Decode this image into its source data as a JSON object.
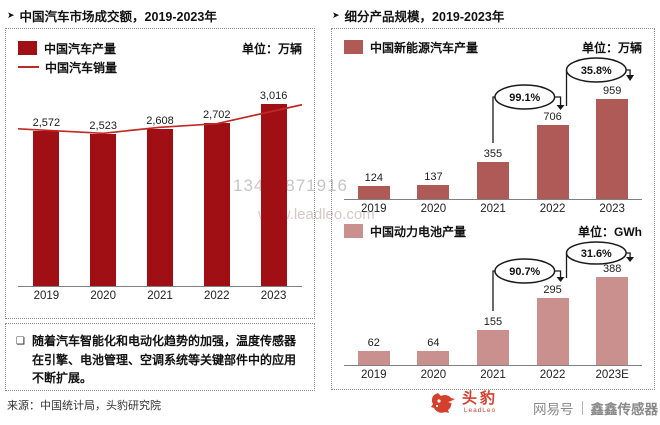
{
  "page": {
    "right": {
      "title": "细分产品规模，2019-2023年"
    },
    "left": {
      "note": "随着汽车智能化和电动化趋势的加强，温度传感器在引擎、电池管理、空调系统等关键部件中的应用不断扩展。",
      "source": "来源：中国统计局，头豹研究院"
    },
    "watermarks": {
      "phone": "13468871916",
      "site": "www.leadleo.com"
    },
    "footer": {
      "brand": "头豹",
      "brand_sub": "LeadLeo",
      "platform": "网易号",
      "account": "鑫鑫传感器"
    }
  },
  "chart_data": [
    {
      "id": "auto-market",
      "type": "bar",
      "title": "中国汽车市场成交额，2019-2023年",
      "unit_label": "单位：万辆",
      "unit": "万辆",
      "categories": [
        "2019",
        "2020",
        "2021",
        "2022",
        "2023"
      ],
      "series": [
        {
          "name": "中国汽车产量",
          "type": "bar",
          "values": [
            2572,
            2523,
            2608,
            2702,
            3016
          ],
          "labels": [
            "2,572",
            "2,523",
            "2,608",
            "2,702",
            "3,016"
          ],
          "color": "#a00f14"
        },
        {
          "name": "中国汽车销量",
          "type": "line",
          "values_estimated": [
            2580,
            2530,
            2630,
            2690,
            2900
          ],
          "color": "#be2b26",
          "note": "line is unlabeled in the figure; values estimated from pixels"
        }
      ],
      "ylim": [
        0,
        3016
      ],
      "grid": false,
      "legend_position": "top-left"
    },
    {
      "id": "nev",
      "type": "bar",
      "title": "中国新能源汽车产量",
      "unit_label": "单位：万辆",
      "unit": "万辆",
      "categories": [
        "2019",
        "2020",
        "2021",
        "2022",
        "2023"
      ],
      "values": [
        124,
        137,
        355,
        706,
        959
      ],
      "labels": [
        "124",
        "137",
        "355",
        "706",
        "959"
      ],
      "color": "#b05a58",
      "growth_annotations": [
        {
          "from": "2021",
          "to": "2022",
          "label": "99.1%"
        },
        {
          "from": "2022",
          "to": "2023",
          "label": "35.8%"
        }
      ],
      "ylim": [
        0,
        959
      ],
      "grid": false
    },
    {
      "id": "battery",
      "type": "bar",
      "title": "中国动力电池产量",
      "unit_label": "单位：GWh",
      "unit": "GWh",
      "categories": [
        "2019",
        "2020",
        "2021",
        "2022",
        "2023E"
      ],
      "values": [
        62,
        64,
        155,
        295,
        388
      ],
      "labels": [
        "62",
        "64",
        "155",
        "295",
        "388"
      ],
      "color": "#c9908e",
      "growth_annotations": [
        {
          "from": "2021",
          "to": "2022",
          "label": "90.7%"
        },
        {
          "from": "2022",
          "to": "2023E",
          "label": "31.6%"
        }
      ],
      "ylim": [
        0,
        388
      ],
      "grid": false
    }
  ]
}
